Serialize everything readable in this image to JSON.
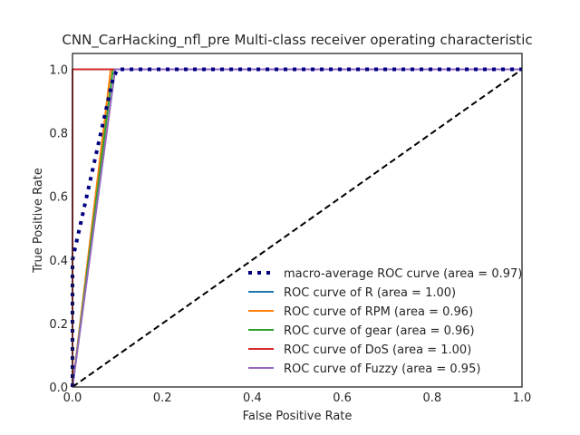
{
  "chart_data": {
    "type": "line",
    "title": "CNN_CarHacking_nfl_pre Multi-class receiver operating characteristic",
    "xlabel": "False Positive Rate",
    "ylabel": "True Positive Rate",
    "xlim": [
      0.0,
      1.0
    ],
    "ylim": [
      0.0,
      1.05
    ],
    "xticks": [
      0.0,
      0.2,
      0.4,
      0.6,
      0.8,
      1.0
    ],
    "yticks": [
      0.0,
      0.2,
      0.4,
      0.6,
      0.8,
      1.0
    ],
    "xtick_labels": [
      "0.0",
      "0.2",
      "0.4",
      "0.6",
      "0.8",
      "1.0"
    ],
    "ytick_labels": [
      "0.0",
      "0.2",
      "0.4",
      "0.6",
      "0.8",
      "1.0"
    ],
    "grid": false,
    "legend_position": "lower-right",
    "series": [
      {
        "name": "macro-average ROC curve (area = 0.97)",
        "color": "#000080",
        "style": "dotted",
        "x": [
          0.0,
          0.0,
          0.09,
          0.1,
          1.0
        ],
        "y": [
          0.0,
          0.4,
          0.97,
          1.0,
          1.0
        ]
      },
      {
        "name": "ROC curve of R (area = 1.00)",
        "color": "#1f77b4",
        "style": "solid",
        "x": [
          0.0,
          0.0,
          1.0
        ],
        "y": [
          0.0,
          1.0,
          1.0
        ]
      },
      {
        "name": "ROC curve of RPM (area = 0.96)",
        "color": "#ff7f0e",
        "style": "solid",
        "x": [
          0.0,
          0.085,
          1.0
        ],
        "y": [
          0.0,
          1.0,
          1.0
        ]
      },
      {
        "name": "ROC curve of gear (area = 0.96)",
        "color": "#2ca02c",
        "style": "solid",
        "x": [
          0.0,
          0.09,
          1.0
        ],
        "y": [
          0.0,
          1.0,
          1.0
        ]
      },
      {
        "name": "ROC curve of DoS (area = 1.00)",
        "color": "#d62728",
        "style": "solid",
        "x": [
          0.0,
          0.0,
          1.0
        ],
        "y": [
          0.0,
          1.0,
          1.0
        ]
      },
      {
        "name": "ROC curve of Fuzzy (area = 0.95)",
        "color": "#9467bd",
        "style": "solid",
        "x": [
          0.0,
          0.095,
          1.0
        ],
        "y": [
          0.0,
          1.0,
          1.0
        ]
      }
    ],
    "reference_line": {
      "color": "#000000",
      "style": "dashed",
      "x": [
        0.0,
        1.0
      ],
      "y": [
        0.0,
        1.0
      ]
    }
  }
}
